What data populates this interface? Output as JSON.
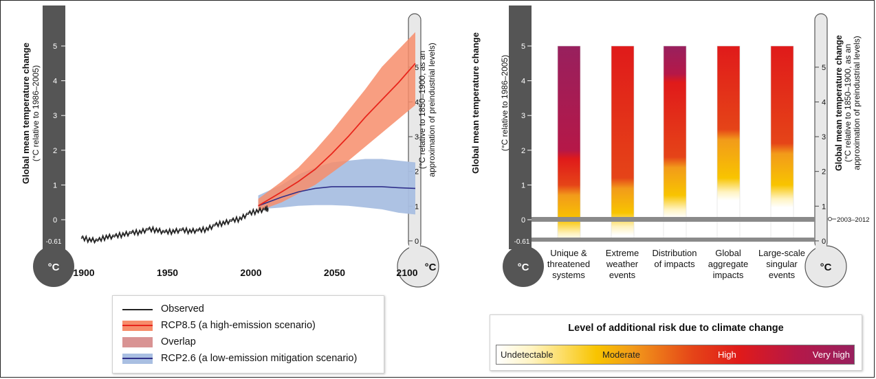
{
  "colors": {
    "thermo_dark": "#555555",
    "thermo_light": "#e8e8e8",
    "observed": "#222222",
    "rcp85_line": "#e8251b",
    "rcp85_band": "#f78d6b",
    "overlap": "#d99393",
    "rcp26_line": "#2f2f8a",
    "rcp26_band": "#a9bfe2",
    "reference_bar": "#8a8a8a"
  },
  "left_panel": {
    "left_axis_title": "Global mean temperature change",
    "left_axis_subtitle": "(°C relative to 1986–2005)",
    "right_axis_title": "(°C relative to 1850–1900, as an",
    "right_axis_subtitle": "approximation of preindustrial levels)",
    "unit_left": "°C",
    "unit_right": "°C",
    "low_tick": "-0.61"
  },
  "right_panel": {
    "left_axis_title": "Global mean temperature change",
    "left_axis_subtitle": "(°C relative to 1986–2005)",
    "right_axis_title": "Global mean temperature change",
    "right_axis_subtitle": "(°C relative to 1850–1900, as an",
    "right_axis_subtitle2": "approximation of preindustrial levels)",
    "unit_left": "°C",
    "unit_right": "°C",
    "low_tick": "-0.61",
    "reference_label": "2003–2012"
  },
  "legend_left": {
    "observed": "Observed",
    "rcp85": "RCP8.5 (a high-emission scenario)",
    "overlap": "Overlap",
    "rcp26": "RCP2.6 (a low-emission mitigation scenario)"
  },
  "legend_right": {
    "title": "Level of additional risk due to climate change",
    "levels": [
      "Undetectable",
      "Moderate",
      "High",
      "Very high"
    ]
  },
  "chart_data": [
    {
      "type": "line",
      "x_ticks": [
        1900,
        1950,
        2000,
        2050,
        2100
      ],
      "y_ticks_left": [
        0,
        1,
        2,
        3,
        4,
        5
      ],
      "y_ticks_right": [
        0,
        1,
        2,
        3,
        4,
        5
      ],
      "ylim": [
        -0.61,
        5.5
      ],
      "xlim": [
        1900,
        2100
      ],
      "series": [
        {
          "name": "Observed",
          "x": [
            1900,
            1905,
            1910,
            1915,
            1920,
            1925,
            1930,
            1935,
            1940,
            1945,
            1950,
            1955,
            1960,
            1965,
            1970,
            1975,
            1980,
            1985,
            1990,
            1995,
            2000,
            2005,
            2010,
            2012
          ],
          "y": [
            -0.55,
            -0.6,
            -0.62,
            -0.52,
            -0.5,
            -0.45,
            -0.4,
            -0.38,
            -0.3,
            -0.32,
            -0.38,
            -0.36,
            -0.32,
            -0.35,
            -0.33,
            -0.3,
            -0.18,
            -0.12,
            -0.05,
            0.0,
            0.15,
            0.22,
            0.28,
            0.3
          ]
        },
        {
          "name": "RCP8.5",
          "x": [
            2006,
            2020,
            2030,
            2040,
            2050,
            2060,
            2070,
            2080,
            2090,
            2100
          ],
          "y": [
            0.4,
            0.8,
            1.1,
            1.45,
            1.9,
            2.4,
            2.95,
            3.45,
            3.95,
            4.5
          ],
          "low": [
            0.25,
            0.5,
            0.75,
            1.0,
            1.35,
            1.7,
            2.1,
            2.5,
            2.9,
            3.3
          ],
          "high": [
            0.6,
            1.1,
            1.5,
            2.0,
            2.55,
            3.15,
            3.75,
            4.4,
            4.9,
            5.4
          ]
        },
        {
          "name": "RCP2.6",
          "x": [
            2006,
            2020,
            2030,
            2040,
            2050,
            2060,
            2070,
            2080,
            2090,
            2100
          ],
          "y": [
            0.4,
            0.65,
            0.8,
            0.9,
            0.95,
            0.95,
            0.95,
            0.95,
            0.92,
            0.9
          ],
          "low": [
            0.3,
            0.35,
            0.4,
            0.42,
            0.42,
            0.4,
            0.35,
            0.3,
            0.2,
            0.15
          ],
          "high": [
            0.7,
            1.0,
            1.3,
            1.5,
            1.65,
            1.7,
            1.75,
            1.75,
            1.7,
            1.65
          ]
        }
      ]
    },
    {
      "type": "bar",
      "categories": [
        "Unique & threatened systems",
        "Extreme weather events",
        "Distribution of impacts",
        "Global aggregate impacts",
        "Large-scale singular events"
      ],
      "category_lines": [
        [
          "Unique &",
          "threatened",
          "systems"
        ],
        [
          "Extreme",
          "weather",
          "events"
        ],
        [
          "Distribution",
          "of impacts"
        ],
        [
          "Global",
          "aggregate",
          "impacts"
        ],
        [
          "Large-scale",
          "singular",
          "events"
        ]
      ],
      "y_ticks_left": [
        0,
        1,
        2,
        3,
        4,
        5
      ],
      "y_ticks_right": [
        0,
        1,
        2,
        3,
        4,
        5
      ],
      "range": [
        -0.61,
        5
      ],
      "risk_transitions": [
        {
          "moderate": -0.2,
          "high": 1.0,
          "very_high": 2.0
        },
        {
          "moderate": 0.0,
          "high": 1.2,
          "very_high": null
        },
        {
          "moderate": 0.5,
          "high": 1.8,
          "very_high": 4.2
        },
        {
          "moderate": 1.0,
          "high": 2.6,
          "very_high": null
        },
        {
          "moderate": 0.8,
          "high": 2.2,
          "very_high": null
        }
      ]
    }
  ]
}
